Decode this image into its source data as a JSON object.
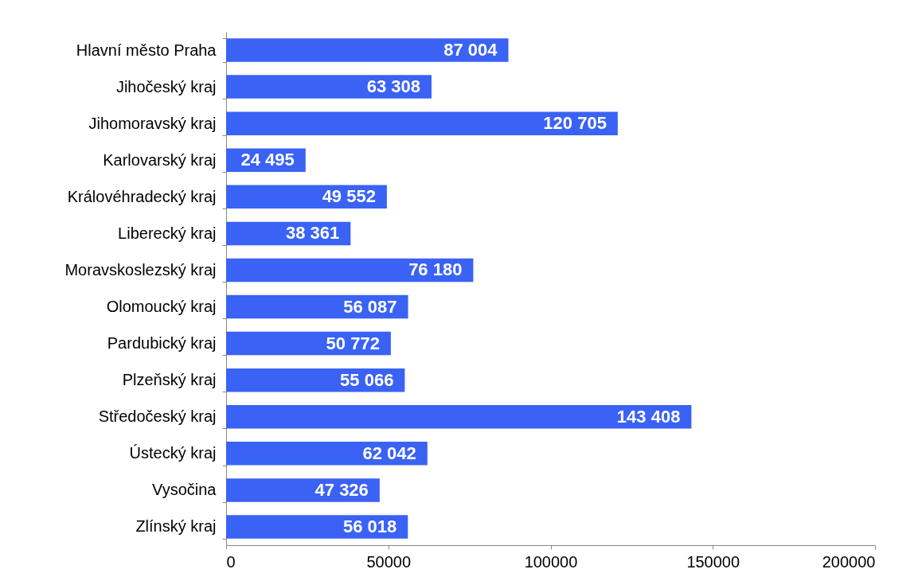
{
  "chart_data": {
    "type": "bar",
    "orientation": "horizontal",
    "categories": [
      "Hlavní město Praha",
      "Jihočeský kraj",
      "Jihomoravský kraj",
      "Karlovarský kraj",
      "Královéhradecký kraj",
      "Liberecký kraj",
      "Moravskoslezský kraj",
      "Olomoucký kraj",
      "Pardubický kraj",
      "Plzeňský kraj",
      "Středočeský kraj",
      "Ústecký kraj",
      "Vysočina",
      "Zlínský kraj"
    ],
    "values": [
      87004,
      63308,
      120705,
      24495,
      49552,
      38361,
      76180,
      56087,
      50772,
      55066,
      143408,
      62042,
      47326,
      56018
    ],
    "value_labels": [
      "87 004",
      "63 308",
      "120 705",
      "24 495",
      "49 552",
      "38 361",
      "76 180",
      "56 087",
      "50 772",
      "55 066",
      "143 408",
      "62 042",
      "47 326",
      "56 018"
    ],
    "color": "#3a62f5",
    "xlim": [
      0,
      200000
    ],
    "xticks": [
      0,
      50000,
      100000,
      150000,
      200000
    ],
    "grid": false
  }
}
